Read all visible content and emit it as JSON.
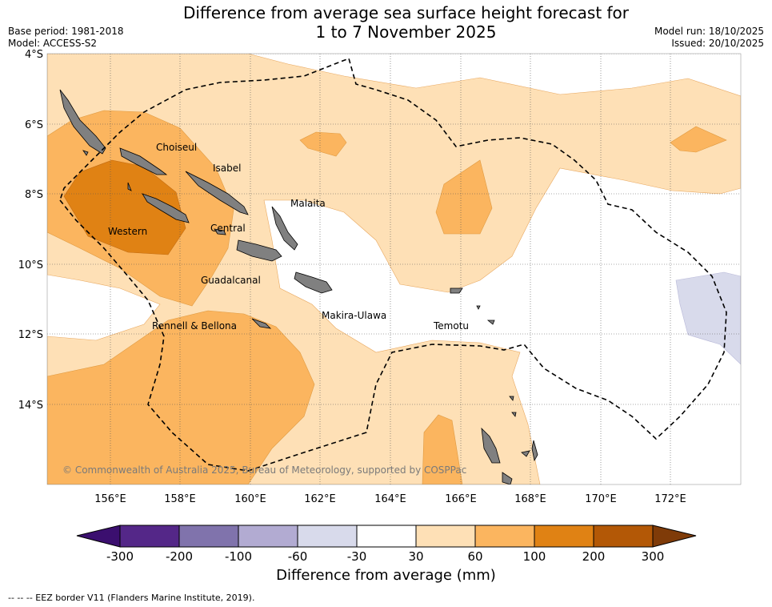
{
  "header": {
    "title_line1": "Difference from average sea surface height forecast for",
    "title_line2": "1 to 7 November 2025",
    "base_period": "Base period: 1981-2018",
    "model": "Model: ACCESS-S2",
    "model_run": "Model run: 18/10/2025",
    "issued": "Issued: 20/10/2025"
  },
  "axes": {
    "lat_labels": [
      "4°S",
      "6°S",
      "8°S",
      "10°S",
      "12°S",
      "14°S"
    ],
    "lon_labels": [
      "156°E",
      "158°E",
      "160°E",
      "162°E",
      "164°E",
      "166°E",
      "168°E",
      "170°E",
      "172°E"
    ]
  },
  "places": {
    "choiseul": "Choiseul",
    "isabel": "Isabel",
    "malaita": "Malaita",
    "western": "Western",
    "central": "Central",
    "guadalcanal": "Guadalcanal",
    "makira": "Makira-Ulawa",
    "rennell": "Rennell & Bellona",
    "temotu": "Temotu"
  },
  "copyright": "© Commonwealth of Australia 2025, Bureau of Meteorology, supported by COSPPac",
  "colorbar": {
    "ticks": [
      "-300",
      "-200",
      "-100",
      "-60",
      "-30",
      "30",
      "60",
      "100",
      "200",
      "300"
    ],
    "label": "Difference from average (mm)",
    "colors": [
      "#3b0f6f",
      "#542788",
      "#8073ac",
      "#b2abd2",
      "#d8daeb",
      "#ffffff",
      "#fee0b6",
      "#fbb55f",
      "#e08214",
      "#b35806",
      "#7f3b08"
    ]
  },
  "legend": "--  --  -- EEZ border V11 (Flanders Marine Institute, 2019)."
}
